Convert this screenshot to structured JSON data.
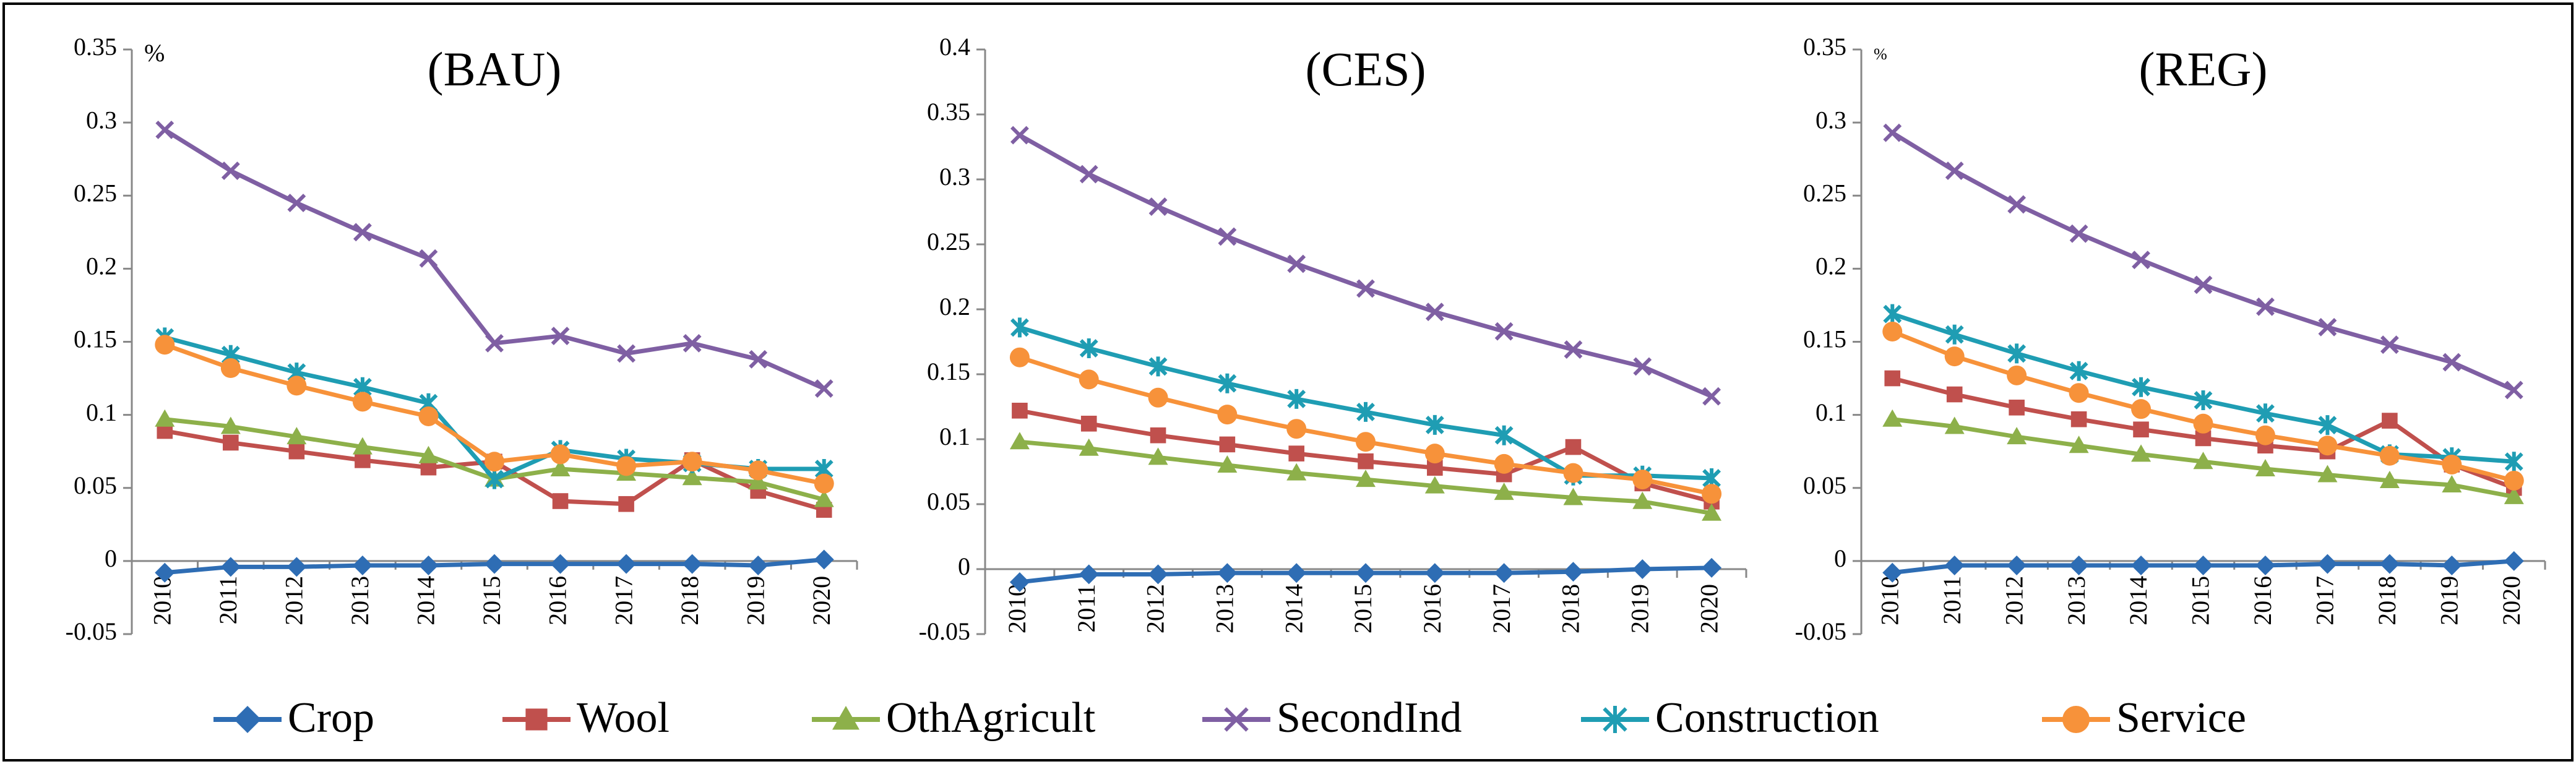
{
  "legend": [
    {
      "name": "Crop",
      "color": "#2e6db4",
      "marker": "diamond"
    },
    {
      "name": "Wool",
      "color": "#c0504d",
      "marker": "square"
    },
    {
      "name": "OthAgricult",
      "color": "#8db04a",
      "marker": "triangle"
    },
    {
      "name": "SecondInd",
      "color": "#7f5fa3",
      "marker": "x"
    },
    {
      "name": "Construction",
      "color": "#1f9db3",
      "marker": "asterisk"
    },
    {
      "name": "Service",
      "color": "#f7923a",
      "marker": "circle"
    }
  ],
  "chart_data": [
    {
      "type": "line",
      "title": "(BAU)",
      "unit": "%",
      "categories": [
        "2010",
        "2011",
        "2012",
        "2013",
        "2014",
        "2015",
        "2016",
        "2017",
        "2018",
        "2019",
        "2020"
      ],
      "ylim": [
        -0.05,
        0.35
      ],
      "yticks": [
        -0.05,
        0,
        0.05,
        0.1,
        0.15,
        0.2,
        0.25,
        0.3,
        0.35
      ],
      "series": [
        {
          "values": [
            -0.008,
            -0.004,
            -0.004,
            -0.003,
            -0.003,
            -0.002,
            -0.002,
            -0.002,
            -0.002,
            -0.003,
            0.001
          ]
        },
        {
          "values": [
            0.089,
            0.081,
            0.075,
            0.069,
            0.064,
            0.068,
            0.041,
            0.039,
            0.069,
            0.048,
            0.035
          ]
        },
        {
          "values": [
            0.097,
            0.092,
            0.085,
            0.078,
            0.072,
            0.056,
            0.063,
            0.06,
            0.057,
            0.054,
            0.042
          ]
        },
        {
          "values": [
            0.295,
            0.267,
            0.245,
            0.225,
            0.207,
            0.149,
            0.154,
            0.142,
            0.149,
            0.138,
            0.118
          ]
        },
        {
          "values": [
            0.153,
            0.141,
            0.129,
            0.119,
            0.108,
            0.056,
            0.076,
            0.07,
            0.067,
            0.063,
            0.063
          ]
        },
        {
          "values": [
            0.148,
            0.132,
            0.12,
            0.109,
            0.099,
            0.068,
            0.073,
            0.065,
            0.068,
            0.062,
            0.053
          ]
        }
      ]
    },
    {
      "type": "line",
      "title": "(CES)",
      "categories": [
        "2010",
        "2011",
        "2012",
        "2013",
        "2014",
        "2015",
        "2016",
        "2017",
        "2018",
        "2019",
        "2020"
      ],
      "ylim": [
        -0.05,
        0.4
      ],
      "yticks": [
        -0.05,
        0,
        0.05,
        0.1,
        0.15,
        0.2,
        0.25,
        0.3,
        0.35,
        0.4
      ],
      "series": [
        {
          "values": [
            -0.01,
            -0.004,
            -0.004,
            -0.003,
            -0.003,
            -0.003,
            -0.003,
            -0.003,
            -0.002,
            0.0,
            0.001
          ]
        },
        {
          "values": [
            0.122,
            0.112,
            0.103,
            0.096,
            0.089,
            0.083,
            0.078,
            0.073,
            0.094,
            0.066,
            0.052
          ]
        },
        {
          "values": [
            0.098,
            0.093,
            0.086,
            0.08,
            0.074,
            0.069,
            0.064,
            0.059,
            0.055,
            0.052,
            0.043
          ]
        },
        {
          "values": [
            0.334,
            0.304,
            0.279,
            0.256,
            0.235,
            0.216,
            0.198,
            0.183,
            0.169,
            0.156,
            0.133
          ]
        },
        {
          "values": [
            0.186,
            0.17,
            0.156,
            0.143,
            0.131,
            0.121,
            0.111,
            0.103,
            0.072,
            0.072,
            0.07
          ]
        },
        {
          "values": [
            0.163,
            0.146,
            0.132,
            0.119,
            0.108,
            0.098,
            0.089,
            0.081,
            0.074,
            0.069,
            0.058
          ]
        }
      ]
    },
    {
      "type": "line",
      "title": "(REG)",
      "unit": "%",
      "categories": [
        "2010",
        "2011",
        "2012",
        "2013",
        "2014",
        "2015",
        "2016",
        "2017",
        "2018",
        "2019",
        "2020"
      ],
      "ylim": [
        -0.05,
        0.35
      ],
      "yticks": [
        -0.05,
        0,
        0.05,
        0.1,
        0.15,
        0.2,
        0.25,
        0.3,
        0.35
      ],
      "series": [
        {
          "values": [
            -0.008,
            -0.003,
            -0.003,
            -0.003,
            -0.003,
            -0.003,
            -0.003,
            -0.002,
            -0.002,
            -0.003,
            0.0
          ]
        },
        {
          "values": [
            0.125,
            0.114,
            0.105,
            0.097,
            0.09,
            0.084,
            0.079,
            0.075,
            0.096,
            0.066,
            0.05
          ]
        },
        {
          "values": [
            0.097,
            0.092,
            0.085,
            0.079,
            0.073,
            0.068,
            0.063,
            0.059,
            0.055,
            0.052,
            0.044
          ]
        },
        {
          "values": [
            0.293,
            0.267,
            0.244,
            0.224,
            0.206,
            0.189,
            0.174,
            0.16,
            0.148,
            0.136,
            0.117
          ]
        },
        {
          "values": [
            0.169,
            0.155,
            0.142,
            0.13,
            0.119,
            0.11,
            0.101,
            0.093,
            0.073,
            0.071,
            0.068
          ]
        },
        {
          "values": [
            0.157,
            0.14,
            0.127,
            0.115,
            0.104,
            0.094,
            0.086,
            0.079,
            0.072,
            0.066,
            0.055
          ]
        }
      ]
    }
  ]
}
